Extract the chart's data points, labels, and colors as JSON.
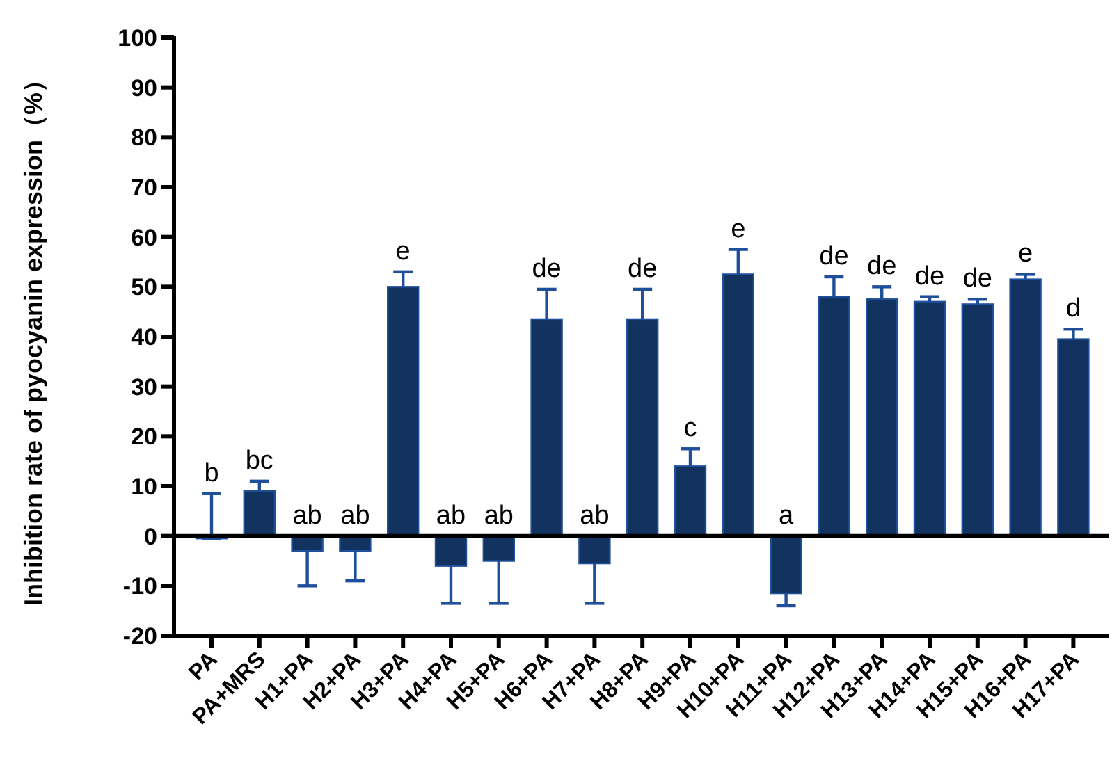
{
  "chart_data": {
    "type": "bar",
    "ylabel": "Inhibition rate of pyocyanin expression（%）",
    "categories": [
      "PA",
      "PA+MRS",
      "H1+PA",
      "H2+PA",
      "H3+PA",
      "H4+PA",
      "H5+PA",
      "H6+PA",
      "H7+PA",
      "H8+PA",
      "H9+PA",
      "H10+PA",
      "H11+PA",
      "H12+PA",
      "H13+PA",
      "H14+PA",
      "H15+PA",
      "H16+PA",
      "H17+PA"
    ],
    "values": [
      -0.5,
      9,
      -3,
      -3,
      50,
      -6,
      -5,
      43.5,
      -5.5,
      43.5,
      14,
      52.5,
      -11.5,
      48,
      47.5,
      47,
      46.5,
      51.5,
      39.5
    ],
    "errors": [
      [
        -0.5,
        8.5
      ],
      [
        9,
        11
      ],
      [
        -10,
        -3
      ],
      [
        -9,
        -3
      ],
      [
        50,
        53
      ],
      [
        -13.5,
        -6
      ],
      [
        -13.5,
        -5
      ],
      [
        43.5,
        49.5
      ],
      [
        -13.5,
        -5.5
      ],
      [
        43.5,
        49.5
      ],
      [
        14,
        17.5
      ],
      [
        52.5,
        57.5
      ],
      [
        -14,
        -11.5
      ],
      [
        48,
        52
      ],
      [
        47.5,
        50
      ],
      [
        47,
        48
      ],
      [
        46.5,
        47.5
      ],
      [
        51.5,
        52.5
      ],
      [
        39.5,
        41.5
      ]
    ],
    "value_labels": [
      "b",
      "bc",
      "ab",
      "ab",
      "e",
      "ab",
      "ab",
      "de",
      "ab",
      "de",
      "c",
      "e",
      "a",
      "de",
      "de",
      "de",
      "de",
      "e",
      "d"
    ],
    "color": "#12325f",
    "ylim": [
      -20,
      100
    ],
    "yticks": [
      -20,
      -10,
      0,
      10,
      20,
      30,
      40,
      50,
      60,
      70,
      80,
      90,
      100
    ]
  }
}
